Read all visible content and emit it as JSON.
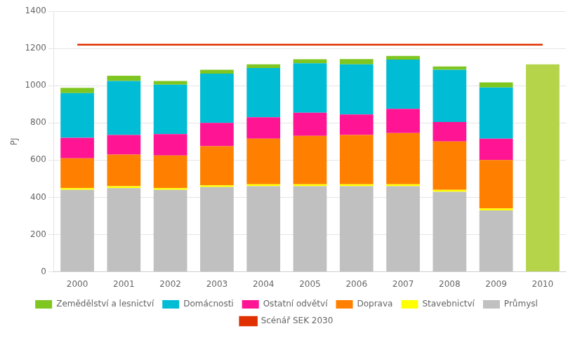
{
  "chart_data": {
    "type": "bar",
    "stacked": true,
    "grid": true,
    "legend": "bottom",
    "y_label": "PJ",
    "categories": [
      "2000",
      "2001",
      "2002",
      "2003",
      "2004",
      "2005",
      "2006",
      "2007",
      "2008",
      "2009",
      "2010"
    ],
    "ylim": [
      0,
      1400
    ],
    "yticks": [
      0,
      200,
      400,
      600,
      800,
      1000,
      1200,
      1400
    ],
    "series": [
      {
        "name": "Průmysl",
        "color": "#c0c0c0",
        "values": [
          440,
          450,
          440,
          455,
          460,
          460,
          460,
          460,
          430,
          330,
          0
        ]
      },
      {
        "name": "Stavebnictví",
        "color": "#ffff00",
        "values": [
          10,
          10,
          10,
          10,
          10,
          10,
          10,
          10,
          10,
          10,
          0
        ]
      },
      {
        "name": "Doprava",
        "color": "#ff8000",
        "values": [
          160,
          170,
          175,
          210,
          245,
          260,
          265,
          275,
          260,
          260,
          0
        ]
      },
      {
        "name": "Ostatní odvětví",
        "color": "#ff1493",
        "values": [
          110,
          105,
          115,
          125,
          115,
          125,
          110,
          130,
          105,
          115,
          0
        ]
      },
      {
        "name": "Domácnosti",
        "color": "#00bcd4",
        "values": [
          240,
          290,
          265,
          265,
          265,
          265,
          270,
          265,
          280,
          275,
          0
        ]
      },
      {
        "name": "Zemědělství a lesnictví",
        "color": "#7fc620",
        "values": [
          28,
          28,
          20,
          20,
          20,
          22,
          28,
          20,
          18,
          28,
          0
        ]
      },
      {
        "color": "#b5d44a",
        "values": [
          null,
          null,
          null,
          null,
          null,
          null,
          null,
          null,
          null,
          null,
          1115
        ]
      },
      {
        "name": "Scénář SEK 2030",
        "type": "line",
        "color": "#e03000",
        "values": [
          1220,
          1220,
          1220,
          1220,
          1220,
          1220,
          1220,
          1220,
          1220,
          1220,
          1220
        ]
      }
    ]
  }
}
